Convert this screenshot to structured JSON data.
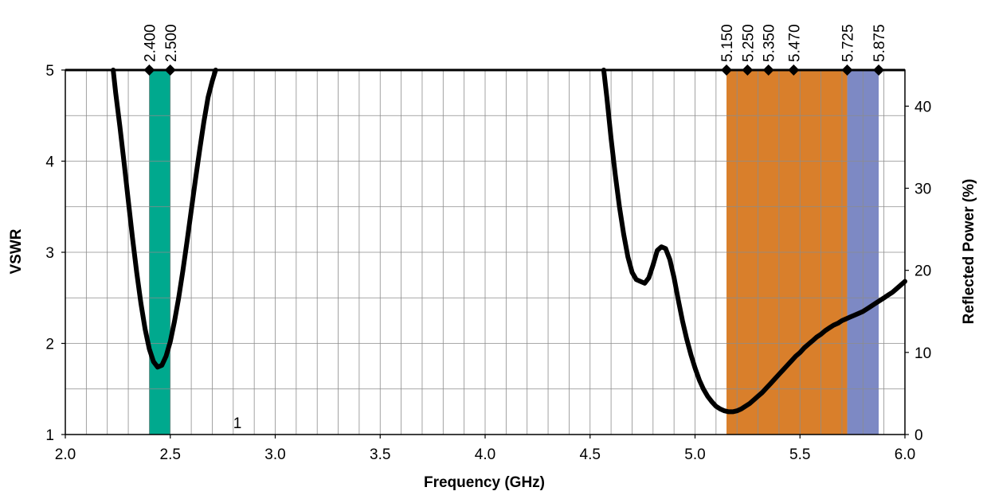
{
  "chart_data": {
    "type": "line",
    "title": "",
    "xlabel": "Frequency (GHz)",
    "ylabel": "VSWR",
    "y2label": "Reflected Power (%)",
    "xlim": [
      2.0,
      6.0
    ],
    "ylim": [
      1,
      5
    ],
    "y2lim": [
      0,
      44.4
    ],
    "x_ticks": [
      {
        "value": 2.0,
        "label": "2.0"
      },
      {
        "value": 2.5,
        "label": "2.5"
      },
      {
        "value": 3.0,
        "label": "3.0"
      },
      {
        "value": 3.5,
        "label": "3.5"
      },
      {
        "value": 4.0,
        "label": "4.0"
      },
      {
        "value": 4.5,
        "label": "4.5"
      },
      {
        "value": 5.0,
        "label": "5.0"
      },
      {
        "value": 5.5,
        "label": "5.5"
      },
      {
        "value": 6.0,
        "label": "6.0"
      }
    ],
    "y_ticks": [
      {
        "value": 1,
        "label": "1"
      },
      {
        "value": 2,
        "label": "2"
      },
      {
        "value": 3,
        "label": "3"
      },
      {
        "value": 4,
        "label": "4"
      },
      {
        "value": 5,
        "label": "5"
      }
    ],
    "y2_ticks": [
      {
        "value": 0,
        "label": "0"
      },
      {
        "value": 10,
        "label": "10"
      },
      {
        "value": 20,
        "label": "20"
      },
      {
        "value": 30,
        "label": "30"
      },
      {
        "value": 40,
        "label": "40"
      }
    ],
    "grid": true,
    "x_minor_step": 0.1,
    "y_minor_step": 0.5,
    "bands": [
      {
        "from": 2.4,
        "to": 2.5,
        "color": "#00a98e"
      },
      {
        "from": 5.15,
        "to": 5.725,
        "color": "#d97f2b"
      },
      {
        "from": 5.725,
        "to": 5.875,
        "color": "#7d89c4"
      }
    ],
    "band_markers": [
      {
        "value": 2.4,
        "label": "2.400"
      },
      {
        "value": 2.5,
        "label": "2.500"
      },
      {
        "value": 5.15,
        "label": "5.150"
      },
      {
        "value": 5.25,
        "label": "5.250"
      },
      {
        "value": 5.35,
        "label": "5.350"
      },
      {
        "value": 5.47,
        "label": "5.470"
      },
      {
        "value": 5.725,
        "label": "5.725"
      },
      {
        "value": 5.875,
        "label": "5.875"
      }
    ],
    "annotations": [
      {
        "x": 2.82,
        "y": 1.07,
        "text": "1"
      }
    ],
    "series": [
      {
        "color": "#000000",
        "x": [
          2.228,
          2.24,
          2.26,
          2.28,
          2.3,
          2.32,
          2.34,
          2.36,
          2.38,
          2.4,
          2.42,
          2.44,
          2.46,
          2.48,
          2.5,
          2.52,
          2.54,
          2.56,
          2.58,
          2.6,
          2.62,
          2.64,
          2.66,
          2.68,
          2.7,
          2.716
        ],
        "y": [
          5.0,
          4.75,
          4.38,
          3.98,
          3.57,
          3.16,
          2.78,
          2.44,
          2.16,
          1.94,
          1.8,
          1.74,
          1.76,
          1.86,
          2.02,
          2.24,
          2.5,
          2.8,
          3.12,
          3.46,
          3.8,
          4.12,
          4.43,
          4.7,
          4.88,
          5.0
        ]
      },
      {
        "color": "#000000",
        "x": [
          4.565,
          4.58,
          4.6,
          4.62,
          4.64,
          4.66,
          4.68,
          4.7,
          4.72,
          4.74,
          4.76,
          4.78,
          4.8,
          4.82,
          4.84,
          4.86,
          4.88,
          4.9,
          4.92,
          4.94,
          4.96,
          4.98,
          5.0,
          5.02,
          5.04,
          5.06,
          5.08,
          5.1,
          5.12,
          5.14,
          5.16,
          5.18,
          5.2,
          5.22,
          5.24,
          5.26,
          5.28,
          5.3,
          5.32,
          5.34,
          5.36,
          5.38,
          5.4,
          5.42,
          5.44,
          5.46,
          5.48,
          5.5,
          5.52,
          5.54,
          5.56,
          5.58,
          5.6,
          5.62,
          5.64,
          5.66,
          5.68,
          5.7,
          5.72,
          5.74,
          5.76,
          5.78,
          5.8,
          5.82,
          5.84,
          5.86,
          5.88,
          5.9,
          5.92,
          5.94,
          5.96,
          5.98,
          6.0
        ],
        "y": [
          5.0,
          4.7,
          4.25,
          3.85,
          3.5,
          3.2,
          2.95,
          2.78,
          2.7,
          2.68,
          2.66,
          2.72,
          2.86,
          3.02,
          3.06,
          3.04,
          2.92,
          2.72,
          2.48,
          2.25,
          2.05,
          1.88,
          1.73,
          1.6,
          1.5,
          1.42,
          1.36,
          1.31,
          1.28,
          1.26,
          1.25,
          1.25,
          1.26,
          1.28,
          1.31,
          1.34,
          1.38,
          1.42,
          1.46,
          1.51,
          1.56,
          1.61,
          1.66,
          1.71,
          1.76,
          1.81,
          1.86,
          1.9,
          1.95,
          1.99,
          2.03,
          2.07,
          2.1,
          2.14,
          2.17,
          2.2,
          2.22,
          2.25,
          2.27,
          2.29,
          2.31,
          2.33,
          2.35,
          2.38,
          2.41,
          2.44,
          2.47,
          2.5,
          2.53,
          2.56,
          2.6,
          2.64,
          2.68
        ]
      }
    ]
  }
}
